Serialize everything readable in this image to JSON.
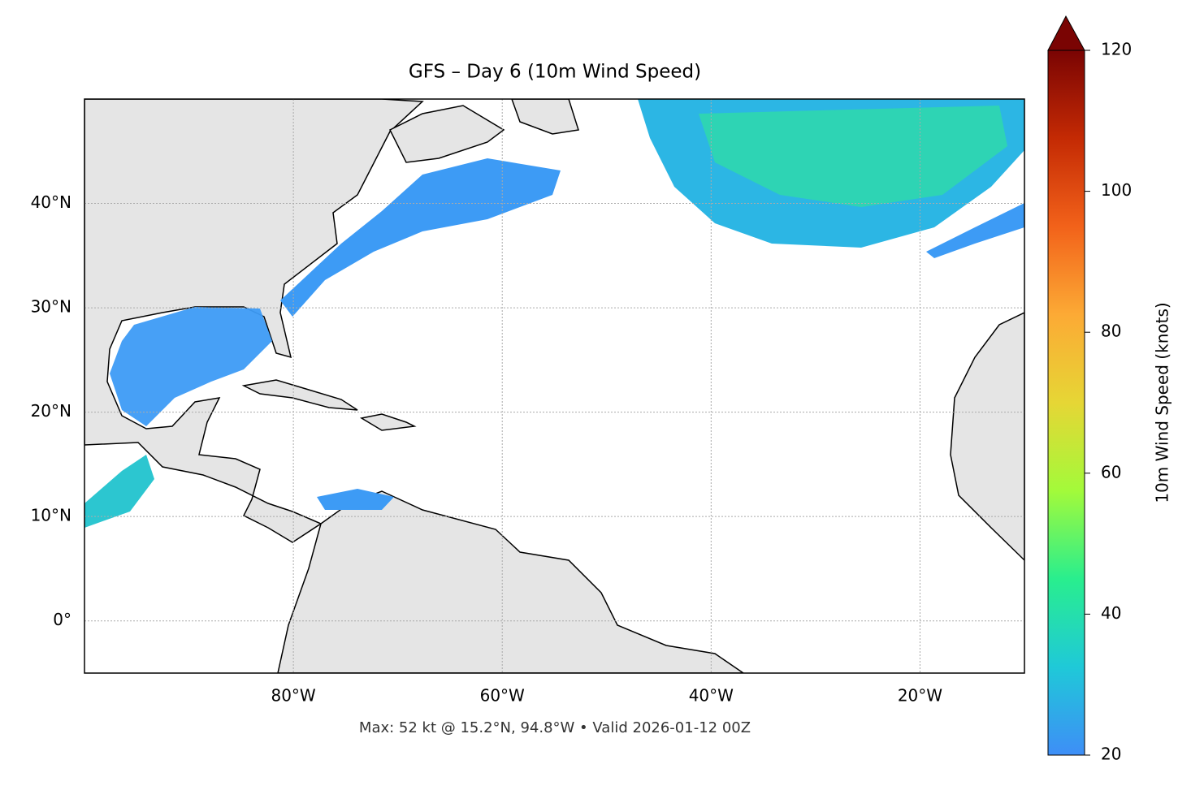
{
  "chart_data": {
    "type": "map",
    "title": "GFS – Day 6 (10m Wind Speed)",
    "footnote": "Max: 52 kt @ 15.2°N, 94.8°W • Valid 2026-01-12 00Z",
    "xlim": [
      -100,
      -10
    ],
    "ylim": [
      -5,
      50
    ],
    "xticks": [
      {
        "value": -80,
        "label": "80°W"
      },
      {
        "value": -60,
        "label": "60°W"
      },
      {
        "value": -40,
        "label": "40°W"
      },
      {
        "value": -20,
        "label": "20°W"
      }
    ],
    "yticks": [
      {
        "value": 0,
        "label": "0°"
      },
      {
        "value": 10,
        "label": "10°N"
      },
      {
        "value": 20,
        "label": "20°N"
      },
      {
        "value": 30,
        "label": "30°N"
      },
      {
        "value": 40,
        "label": "40°N"
      }
    ],
    "grid": true,
    "colorbar": {
      "label": "10m Wind Speed (knots)",
      "lim": [
        20,
        120
      ],
      "ticks": [
        20,
        40,
        60,
        80,
        100,
        120
      ],
      "colors": [
        "#3e8ef7",
        "#1fc9d8",
        "#29ee8e",
        "#a3fa3a",
        "#e6d635",
        "#fcaa35",
        "#f2621a",
        "#c42a04",
        "#7a0403"
      ]
    }
  }
}
